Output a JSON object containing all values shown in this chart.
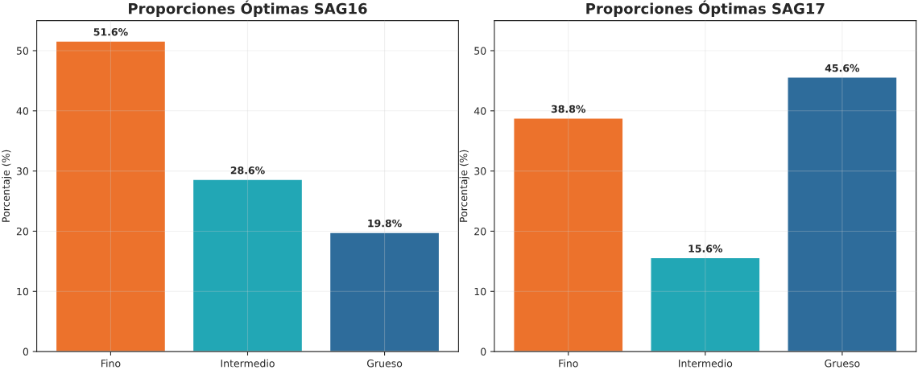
{
  "chart_data": [
    {
      "type": "bar",
      "title": "Proporciones Óptimas SAG16",
      "ylabel": "Porcentaje (%)",
      "categories": [
        "Fino",
        "Intermedio",
        "Grueso"
      ],
      "values": [
        51.6,
        28.6,
        19.8
      ],
      "colors": [
        "#ec722c",
        "#22a7b5",
        "#2e6c9b"
      ],
      "value_labels": [
        "51.6%",
        "28.6%",
        "19.8%"
      ],
      "ylim": [
        0,
        55
      ],
      "yticks": [
        0,
        10,
        20,
        30,
        40,
        50
      ],
      "grid": true
    },
    {
      "type": "bar",
      "title": "Proporciones Óptimas SAG17",
      "ylabel": "Porcentaje (%)",
      "categories": [
        "Fino",
        "Intermedio",
        "Grueso"
      ],
      "values": [
        38.8,
        15.6,
        45.6
      ],
      "colors": [
        "#ec722c",
        "#22a7b5",
        "#2e6c9b"
      ],
      "value_labels": [
        "38.8%",
        "15.6%",
        "45.6%"
      ],
      "ylim": [
        0,
        55
      ],
      "yticks": [
        0,
        10,
        20,
        30,
        40,
        50
      ],
      "grid": true
    }
  ]
}
